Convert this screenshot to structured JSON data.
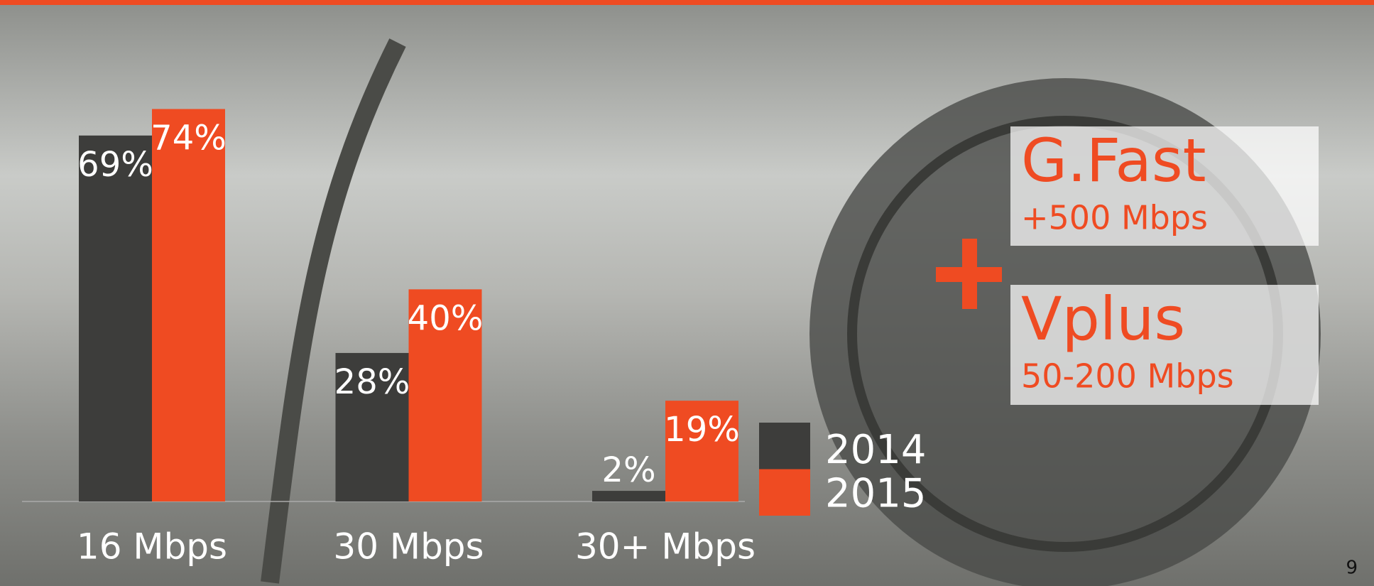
{
  "chart_data": {
    "type": "bar",
    "categories": [
      "16 Mbps",
      "30 Mbps",
      "30+ Mbps"
    ],
    "series": [
      {
        "name": "2014",
        "color": "#3d3d3b",
        "values": [
          69,
          28,
          2
        ],
        "value_labels": [
          "69%",
          "28%",
          "2%"
        ]
      },
      {
        "name": "2015",
        "color": "#ef4b22",
        "values": [
          74,
          40,
          19
        ],
        "value_labels": [
          "74%",
          "40%",
          "19%"
        ]
      }
    ],
    "ylim": [
      0,
      75
    ]
  },
  "callouts": [
    {
      "title": "G.Fast",
      "subtitle": "+500 Mbps"
    },
    {
      "title": "Vplus",
      "subtitle": "50-200 Mbps"
    }
  ],
  "page_number": "9"
}
